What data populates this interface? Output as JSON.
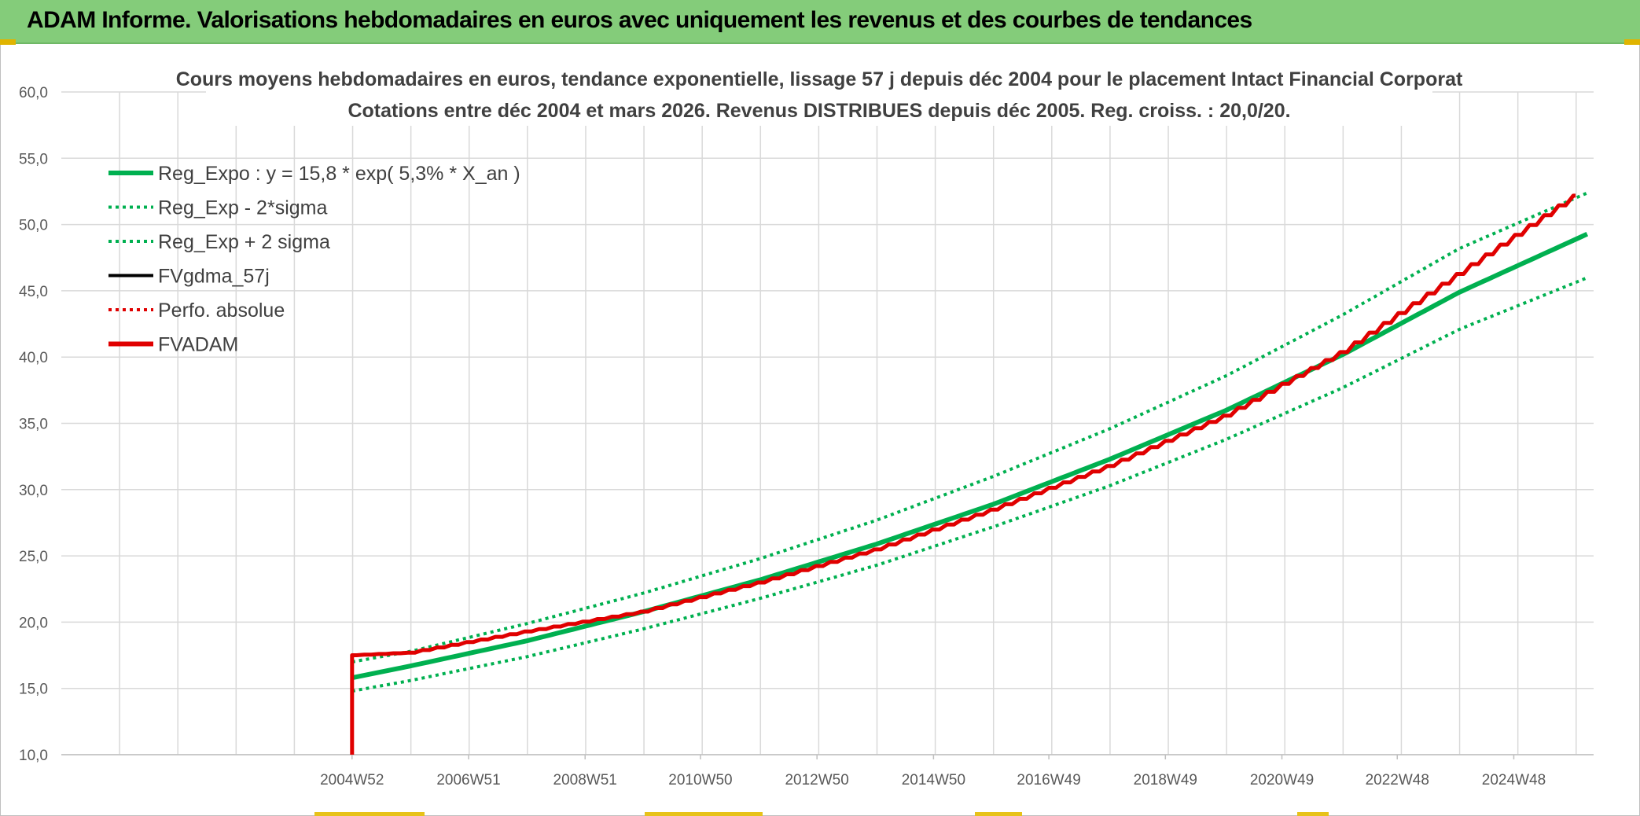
{
  "header": {
    "title": "ADAM Informe. Valorisations hebdomadaires en euros avec uniquement les revenus et des courbes de tendances"
  },
  "colors": {
    "header_bg": "#84cc7a",
    "regression": "#00b050",
    "fvadam": "#e00000",
    "fvgdma": "#000000",
    "perfo": "#e00000",
    "grid": "#d9d9d9"
  },
  "chart_data": {
    "type": "line",
    "title": [
      "Cours moyens hebdomadaires en euros, tendance exponentielle, lissage 57 j depuis déc 2004 pour le placement Intact Financial Corporat",
      "Cotations entre déc 2004 et mars 2026. Revenus DISTRIBUES depuis déc 2005. Reg. croiss. : 20,0/20."
    ],
    "x_tick_labels": [
      "2004W52",
      "2006W51",
      "2008W51",
      "2010W50",
      "2012W50",
      "2014W50",
      "2016W49",
      "2018W49",
      "2020W49",
      "2022W48",
      "2024W48"
    ],
    "x_tick_years": [
      2004.99,
      2006.99,
      2008.99,
      2010.97,
      2012.97,
      2014.97,
      2016.95,
      2018.95,
      2020.95,
      2022.93,
      2024.93
    ],
    "xlim": [
      2000.0,
      2026.3
    ],
    "y_tick_labels": [
      "10,0",
      "15,0",
      "20,0",
      "25,0",
      "30,0",
      "35,0",
      "40,0",
      "45,0",
      "50,0",
      "55,0",
      "60,0"
    ],
    "ylim": [
      10,
      60
    ],
    "grid": true,
    "legend_position": "top-left",
    "series": [
      {
        "name": "Reg_Expo : y = 15,8 * exp( 5,3% *  X_an )",
        "color": "#00b050",
        "style": "solid",
        "x": [
          2004.99,
          2006.0,
          2008.0,
          2010.0,
          2012.0,
          2014.0,
          2016.0,
          2018.0,
          2020.0,
          2022.0,
          2024.0,
          2026.2
        ],
        "y": [
          15.8,
          16.7,
          18.6,
          20.8,
          23.2,
          25.9,
          28.9,
          32.3,
          36.0,
          40.2,
          44.9,
          49.3
        ]
      },
      {
        "name": "Reg_Exp - 2*sigma",
        "color": "#00b050",
        "style": "dotted",
        "x": [
          2004.99,
          2006.0,
          2008.0,
          2010.0,
          2012.0,
          2014.0,
          2016.0,
          2018.0,
          2020.0,
          2022.0,
          2024.0,
          2026.2
        ],
        "y": [
          14.8,
          15.6,
          17.4,
          19.5,
          21.8,
          24.3,
          27.2,
          30.3,
          33.8,
          37.7,
          42.1,
          46.0
        ]
      },
      {
        "name": "Reg_Exp + 2 sigma",
        "color": "#00b050",
        "style": "dotted",
        "x": [
          2004.99,
          2006.0,
          2008.0,
          2010.0,
          2012.0,
          2014.0,
          2016.0,
          2018.0,
          2020.0,
          2022.0,
          2024.0,
          2026.2
        ],
        "y": [
          17.0,
          17.8,
          19.9,
          22.2,
          24.8,
          27.7,
          31.0,
          34.6,
          38.6,
          43.2,
          48.2,
          52.4
        ]
      },
      {
        "name": "FVgdma_57j",
        "color": "#000000",
        "style": "solid",
        "x": [],
        "y": []
      },
      {
        "name": "Perfo. absolue",
        "color": "#e00000",
        "style": "dotted",
        "x": [],
        "y": []
      },
      {
        "name": "FVADAM",
        "color": "#e00000",
        "style": "solid",
        "staircase": true,
        "x": [
          2004.99,
          2004.99,
          2006.0,
          2008.0,
          2010.0,
          2012.0,
          2014.0,
          2016.0,
          2018.0,
          2020.0,
          2022.0,
          2024.0,
          2026.2
        ],
        "y": [
          10.0,
          17.5,
          17.7,
          19.3,
          20.8,
          23.0,
          25.5,
          28.5,
          31.8,
          35.6,
          40.4,
          46.3,
          52.8
        ]
      }
    ]
  }
}
